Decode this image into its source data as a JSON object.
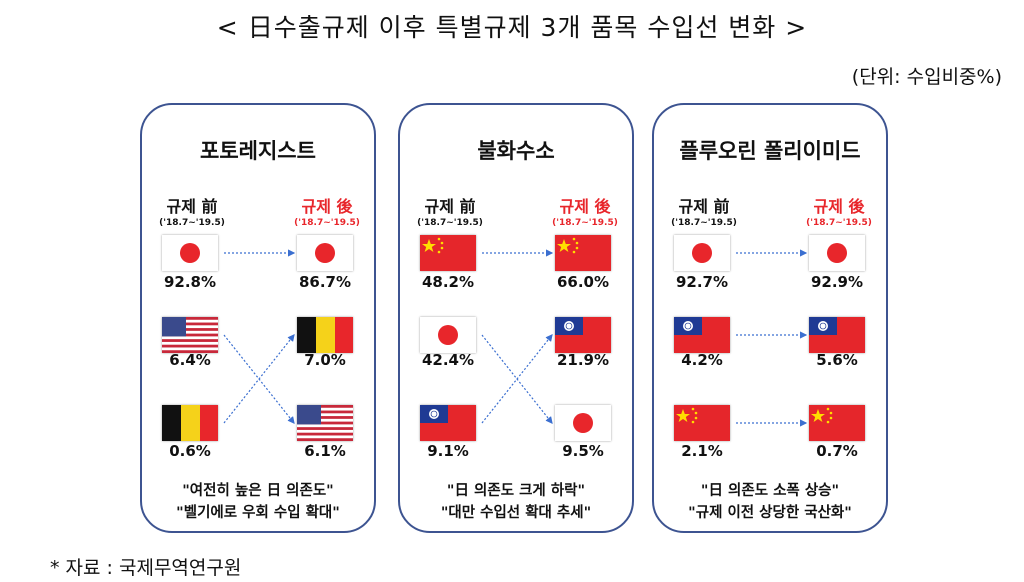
{
  "title": "< 日수출규제 이후 특별규제 3개 품목 수입선 변화 >",
  "unit": "(단위: 수입비중%)",
  "source": "* 자료 : 국제무역연구원",
  "before_label": "규제 前",
  "after_label": "규제 後",
  "before_period": "('18.7~'19.5)",
  "after_period": "('18.7~'19.5)",
  "colors": {
    "border": "#3d5491",
    "after": "#e8262b",
    "arrow": "#3b6fd0"
  },
  "panels": [
    {
      "title": "포토레지스트",
      "before": [
        {
          "flag": "japan-flag",
          "pct": "92.8%"
        },
        {
          "flag": "usa-flag",
          "pct": "6.4%"
        },
        {
          "flag": "belgium-flag",
          "pct": "0.6%"
        }
      ],
      "after": [
        {
          "flag": "japan-flag",
          "pct": "86.7%"
        },
        {
          "flag": "belgium-flag",
          "pct": "7.0%"
        },
        {
          "flag": "usa-flag",
          "pct": "6.1%"
        }
      ],
      "links": [
        [
          0,
          0
        ],
        [
          1,
          2
        ],
        [
          2,
          1
        ]
      ],
      "quotes": [
        "\"여전히 높은 日 의존도\"",
        "\"벨기에로 우회 수입 확대\""
      ]
    },
    {
      "title": "불화수소",
      "before": [
        {
          "flag": "china-flag",
          "pct": "48.2%"
        },
        {
          "flag": "japan-flag",
          "pct": "42.4%"
        },
        {
          "flag": "taiwan-flag",
          "pct": "9.1%"
        }
      ],
      "after": [
        {
          "flag": "china-flag",
          "pct": "66.0%"
        },
        {
          "flag": "taiwan-flag",
          "pct": "21.9%"
        },
        {
          "flag": "japan-flag",
          "pct": "9.5%"
        }
      ],
      "links": [
        [
          0,
          0
        ],
        [
          1,
          2
        ],
        [
          2,
          1
        ]
      ],
      "quotes": [
        "\"日 의존도 크게 하락\"",
        "\"대만 수입선 확대 추세\""
      ]
    },
    {
      "title": "플루오린 폴리이미드",
      "before": [
        {
          "flag": "japan-flag",
          "pct": "92.7%"
        },
        {
          "flag": "taiwan-flag",
          "pct": "4.2%"
        },
        {
          "flag": "china-flag",
          "pct": "2.1%"
        }
      ],
      "after": [
        {
          "flag": "japan-flag",
          "pct": "92.9%"
        },
        {
          "flag": "taiwan-flag",
          "pct": "5.6%"
        },
        {
          "flag": "china-flag",
          "pct": "0.7%"
        }
      ],
      "links": [
        [
          0,
          0
        ],
        [
          1,
          1
        ],
        [
          2,
          2
        ]
      ],
      "quotes": [
        "\"日 의존도 소폭 상승\"",
        "\"규제 이전 상당한 국산화\""
      ]
    }
  ]
}
